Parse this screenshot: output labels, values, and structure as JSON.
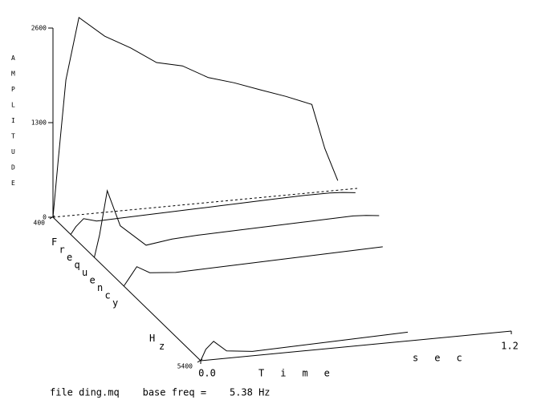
{
  "chart_data": {
    "type": "waterfall",
    "ylabel": "AMPLITUDE",
    "flabel": "Frequency",
    "funit": "Hz",
    "xlabel": "Time",
    "xunit": "sec",
    "footer": "file ding.mq    base freq =    5.38 Hz",
    "zlim": [
      0,
      2600
    ],
    "zticks": [
      0,
      1300,
      2600
    ],
    "flim": [
      400,
      5400
    ],
    "fticks": [
      400,
      5400
    ],
    "xlim": [
      0,
      1.2
    ],
    "xticks": [
      {
        "value": 0,
        "label": "0.0"
      },
      {
        "value": 1.2,
        "label": "1.2"
      }
    ],
    "x": [
      0,
      0.02,
      0.05,
      0.1,
      0.2,
      0.3,
      0.4,
      0.5,
      0.6,
      0.7,
      0.8,
      0.9,
      1.0,
      1.05,
      1.1
    ],
    "color": "#000000",
    "series": [
      {
        "frequency": 400,
        "values": [
          0,
          775,
          1870,
          2710,
          2420,
          2225,
          1990,
          1910,
          1715,
          1610,
          1480,
          1355,
          1210,
          590,
          130
        ]
      },
      {
        "frequency": 1000,
        "values": [
          0,
          100,
          200,
          150,
          160,
          170,
          180,
          190,
          200,
          210,
          220,
          230,
          230,
          220,
          200
        ]
      },
      {
        "frequency": 1800,
        "values": [
          0,
          300,
          900,
          400,
          100,
          150,
          170,
          180,
          190,
          200,
          210,
          220,
          230,
          220,
          200
        ]
      },
      {
        "frequency": 2800,
        "values": [
          0,
          100,
          250,
          150,
          120,
          130,
          140,
          150,
          160,
          170,
          180,
          190,
          200,
          null,
          null
        ]
      },
      {
        "frequency": 5400,
        "values": [
          0,
          150,
          250,
          100,
          60,
          70,
          80,
          90,
          100,
          110,
          120,
          null,
          null,
          null,
          null
        ]
      }
    ]
  }
}
